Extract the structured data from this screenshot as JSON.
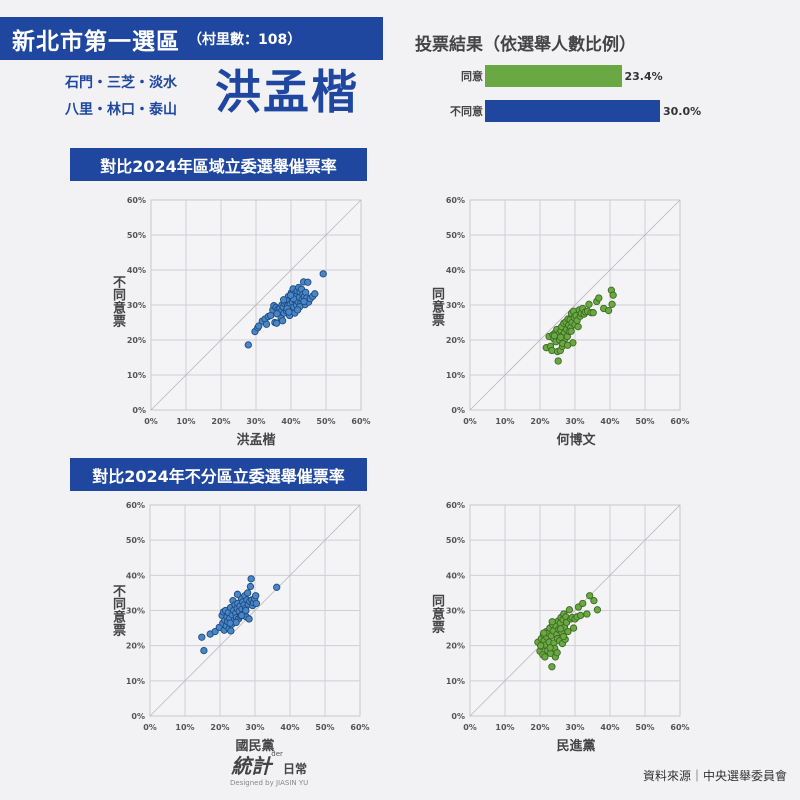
{
  "header": {
    "title": "新北市第一選區",
    "subtitle": "（村里數：108）",
    "areas_line1": "石門・三芝・淡水",
    "areas_line2": "八里・林口・泰山",
    "candidate": "洪孟楷"
  },
  "vote_result": {
    "title": "投票結果（依選舉人數比例）",
    "rows": [
      {
        "label": "同意",
        "value": 23.4,
        "display": "23.4%",
        "color": "#6aa843"
      },
      {
        "label": "不同意",
        "value": 30.0,
        "display": "30.0%",
        "color": "#1f47a0"
      }
    ]
  },
  "sections": [
    {
      "title": "對比2024年區域立委選舉催票率"
    },
    {
      "title": "對比2024年不分區立委選舉催票率"
    }
  ],
  "footer": {
    "logo_text": "統計",
    "logo_suffix": "日常",
    "logo_der": "der",
    "designer": "Designed by JIASIN YU",
    "source": "資料來源｜中央選舉委員會"
  },
  "colors": {
    "brand_blue": "#1f47a0",
    "agree_green": "#6aa843",
    "disagree_blue": "#4a86c5",
    "background": "#f2f1f4"
  },
  "chart_data": [
    {
      "type": "bar",
      "title": "投票結果（依選舉人數比例）",
      "categories": [
        "同意",
        "不同意"
      ],
      "values": [
        23.4,
        30.0
      ],
      "unit": "%"
    },
    {
      "type": "scatter",
      "title": "對比2024年區域立委選舉催票率",
      "xlabel": "洪孟楷",
      "ylabel": "不同意票",
      "xlim": [
        0,
        60
      ],
      "ylim": [
        0,
        60
      ],
      "ticks": [
        "0%",
        "10%",
        "20%",
        "30%",
        "40%",
        "50%",
        "60%"
      ],
      "grid": true,
      "diagonal": true,
      "color": "#4a86c5",
      "points": [
        [
          27.8,
          18.6
        ],
        [
          29.7,
          22.4
        ],
        [
          30.5,
          23.5
        ],
        [
          30.8,
          24
        ],
        [
          31.8,
          25.4
        ],
        [
          32.6,
          26
        ],
        [
          33,
          24.5
        ],
        [
          33.5,
          26.7
        ],
        [
          34.2,
          27
        ],
        [
          34.8,
          28.6
        ],
        [
          35.1,
          29.8
        ],
        [
          35.4,
          25
        ],
        [
          35.7,
          29.3
        ],
        [
          35.9,
          24.8
        ],
        [
          36.3,
          28.8
        ],
        [
          36.8,
          29
        ],
        [
          37,
          28
        ],
        [
          37.2,
          26.2
        ],
        [
          37.4,
          30
        ],
        [
          37.8,
          29.4
        ],
        [
          37.6,
          25.5
        ],
        [
          38,
          27.7
        ],
        [
          38.2,
          30.4
        ],
        [
          38.5,
          31
        ],
        [
          38.7,
          28.4
        ],
        [
          39,
          29.7
        ],
        [
          39.2,
          32.4
        ],
        [
          39.5,
          31.4
        ],
        [
          39.6,
          27
        ],
        [
          39.8,
          30.2
        ],
        [
          40,
          28.5
        ],
        [
          40.1,
          33.5
        ],
        [
          40.3,
          32
        ],
        [
          40.4,
          30.8
        ],
        [
          40.6,
          34.6
        ],
        [
          40.8,
          29.4
        ],
        [
          41,
          31.5
        ],
        [
          41.1,
          27.7
        ],
        [
          41.3,
          33.4
        ],
        [
          41.5,
          32.6
        ],
        [
          41.6,
          30
        ],
        [
          41.8,
          34
        ],
        [
          42,
          31
        ],
        [
          42.2,
          35
        ],
        [
          42.4,
          32.2
        ],
        [
          42.6,
          33.8
        ],
        [
          42.8,
          30.6
        ],
        [
          43,
          34.5
        ],
        [
          43.2,
          31.6
        ],
        [
          43.4,
          33
        ],
        [
          43.6,
          36.6
        ],
        [
          43.8,
          32.4
        ],
        [
          44,
          30.1
        ],
        [
          44.2,
          33.6
        ],
        [
          44.5,
          32
        ],
        [
          44.8,
          36.5
        ],
        [
          45,
          30.8
        ],
        [
          45.5,
          31.8
        ],
        [
          46.2,
          32.5
        ],
        [
          46.8,
          33.2
        ],
        [
          49.2,
          38.9
        ],
        [
          38.9,
          29
        ],
        [
          39.4,
          28
        ],
        [
          40.7,
          31.8
        ],
        [
          42.5,
          29.5
        ],
        [
          36,
          27.5
        ],
        [
          37.9,
          31.5
        ],
        [
          41.9,
          28.6
        ],
        [
          43.7,
          31
        ],
        [
          39.9,
          32.8
        ]
      ]
    },
    {
      "type": "scatter",
      "title": "對比2024年區域立委選舉催票率",
      "xlabel": "何博文",
      "ylabel": "同意票",
      "xlim": [
        0,
        60
      ],
      "ylim": [
        0,
        60
      ],
      "ticks": [
        "0%",
        "10%",
        "20%",
        "30%",
        "40%",
        "50%",
        "60%"
      ],
      "grid": true,
      "diagonal": true,
      "color": "#6aa843",
      "points": [
        [
          21.8,
          17.8
        ],
        [
          22.6,
          21
        ],
        [
          23,
          18.2
        ],
        [
          23.4,
          17
        ],
        [
          23.7,
          21.5
        ],
        [
          24,
          20.3
        ],
        [
          24.3,
          22
        ],
        [
          24.6,
          19.5
        ],
        [
          24.8,
          23
        ],
        [
          25,
          16.7
        ],
        [
          25.2,
          14
        ],
        [
          25.4,
          21.8
        ],
        [
          25.6,
          20
        ],
        [
          25.8,
          17
        ],
        [
          26,
          22.6
        ],
        [
          26.2,
          23.8
        ],
        [
          26.4,
          18.2
        ],
        [
          26.6,
          21.4
        ],
        [
          26.8,
          24.8
        ],
        [
          27,
          22
        ],
        [
          27.2,
          20.4
        ],
        [
          27.4,
          25.2
        ],
        [
          27.6,
          23
        ],
        [
          27.8,
          21
        ],
        [
          28,
          26
        ],
        [
          28.2,
          24.2
        ],
        [
          28.4,
          22.4
        ],
        [
          28.6,
          25.8
        ],
        [
          28.8,
          23.6
        ],
        [
          29,
          27.6
        ],
        [
          29.2,
          25
        ],
        [
          29.4,
          19.2
        ],
        [
          29.6,
          28.2
        ],
        [
          29.8,
          26.4
        ],
        [
          30,
          24.4
        ],
        [
          30.3,
          27
        ],
        [
          30.6,
          25.6
        ],
        [
          30.9,
          23.8
        ],
        [
          31.2,
          28.6
        ],
        [
          31.5,
          26.8
        ],
        [
          31.8,
          27.6
        ],
        [
          32.2,
          29
        ],
        [
          32.6,
          27.4
        ],
        [
          33,
          28
        ],
        [
          33.6,
          28.2
        ],
        [
          34,
          30.2
        ],
        [
          34.6,
          27.8
        ],
        [
          35.2,
          27.8
        ],
        [
          36.2,
          31
        ],
        [
          36.8,
          32
        ],
        [
          38.2,
          29
        ],
        [
          39.6,
          28.4
        ],
        [
          40.4,
          34.2
        ],
        [
          40.6,
          30.2
        ],
        [
          40.9,
          32.8
        ],
        [
          26.5,
          19
        ],
        [
          27.9,
          18.5
        ],
        [
          25.9,
          20.8
        ],
        [
          24.1,
          21.2
        ],
        [
          28.9,
          22.5
        ]
      ]
    },
    {
      "type": "scatter",
      "title": "對比2024年不分區立委選舉催票率",
      "xlabel": "國民黨",
      "ylabel": "不同意票",
      "xlim": [
        0,
        60
      ],
      "ylim": [
        0,
        60
      ],
      "ticks": [
        "0%",
        "10%",
        "20%",
        "30%",
        "40%",
        "50%",
        "60%"
      ],
      "grid": true,
      "diagonal": true,
      "color": "#4a86c5",
      "points": [
        [
          14.8,
          22.4
        ],
        [
          15.4,
          18.6
        ],
        [
          17.2,
          23.3
        ],
        [
          18.6,
          24
        ],
        [
          19.8,
          25.2
        ],
        [
          20.6,
          28.6
        ],
        [
          20.8,
          26.4
        ],
        [
          21,
          29.6
        ],
        [
          21.2,
          24.4
        ],
        [
          21.4,
          27.2
        ],
        [
          21.6,
          30
        ],
        [
          21.8,
          25.6
        ],
        [
          22,
          28.2
        ],
        [
          22.2,
          26.8
        ],
        [
          22.4,
          29.4
        ],
        [
          22.6,
          24.8
        ],
        [
          22.8,
          27.8
        ],
        [
          23,
          30.8
        ],
        [
          23.1,
          24.2
        ],
        [
          23.3,
          26
        ],
        [
          23.5,
          28.8
        ],
        [
          23.7,
          32.8
        ],
        [
          23.9,
          30
        ],
        [
          24.1,
          27.2
        ],
        [
          24.3,
          31.6
        ],
        [
          24.5,
          29.2
        ],
        [
          24.7,
          28
        ],
        [
          24.9,
          30.6
        ],
        [
          25.1,
          32
        ],
        [
          25.3,
          27.6
        ],
        [
          25.5,
          29.8
        ],
        [
          25.7,
          31.2
        ],
        [
          25.9,
          28.4
        ],
        [
          26.1,
          33.4
        ],
        [
          26.3,
          30.4
        ],
        [
          26.5,
          32.4
        ],
        [
          26.7,
          29
        ],
        [
          26.9,
          31.6
        ],
        [
          27.1,
          34.2
        ],
        [
          27.3,
          30.6
        ],
        [
          27.5,
          28.2
        ],
        [
          27.7,
          33
        ],
        [
          27.9,
          35
        ],
        [
          28.1,
          31.8
        ],
        [
          28.3,
          27.6
        ],
        [
          28.5,
          32.6
        ],
        [
          28.7,
          36.8
        ],
        [
          28.9,
          39
        ],
        [
          29.1,
          33
        ],
        [
          29.3,
          31.4
        ],
        [
          29.6,
          32.2
        ],
        [
          29.9,
          33.4
        ],
        [
          30.2,
          34.2
        ],
        [
          30.4,
          32
        ],
        [
          36.2,
          36.6
        ],
        [
          24.6,
          26.6
        ],
        [
          22.9,
          26.4
        ],
        [
          26.2,
          28.6
        ],
        [
          27.4,
          30
        ],
        [
          25,
          34.6
        ]
      ]
    },
    {
      "type": "scatter",
      "title": "對比2024年不分區立委選舉催票率",
      "xlabel": "民進黨",
      "ylabel": "同意票",
      "xlim": [
        0,
        60
      ],
      "ylim": [
        0,
        60
      ],
      "ticks": [
        "0%",
        "10%",
        "20%",
        "30%",
        "40%",
        "50%",
        "60%"
      ],
      "grid": true,
      "diagonal": true,
      "color": "#6aa843",
      "points": [
        [
          19.4,
          21
        ],
        [
          20,
          18.4
        ],
        [
          20.4,
          22
        ],
        [
          20.6,
          19.8
        ],
        [
          20.8,
          17.4
        ],
        [
          21,
          23.2
        ],
        [
          21.2,
          21.4
        ],
        [
          21.4,
          16.8
        ],
        [
          21.6,
          20.2
        ],
        [
          21.8,
          24
        ],
        [
          22,
          22.4
        ],
        [
          22.2,
          18.6
        ],
        [
          22.4,
          23.6
        ],
        [
          22.6,
          21
        ],
        [
          22.8,
          25
        ],
        [
          23,
          17.8
        ],
        [
          23.2,
          22.8
        ],
        [
          23.4,
          14
        ],
        [
          23.6,
          26
        ],
        [
          23.8,
          24.2
        ],
        [
          24,
          20.8
        ],
        [
          24.2,
          19.2
        ],
        [
          24.4,
          16.8
        ],
        [
          24.6,
          25.6
        ],
        [
          24.8,
          23.2
        ],
        [
          25,
          22
        ],
        [
          25.2,
          27
        ],
        [
          25.4,
          24.6
        ],
        [
          25.6,
          21.4
        ],
        [
          25.8,
          26.4
        ],
        [
          26,
          28
        ],
        [
          26.2,
          23.8
        ],
        [
          26.4,
          20.6
        ],
        [
          26.6,
          27.4
        ],
        [
          26.8,
          29
        ],
        [
          27,
          25.2
        ],
        [
          27.2,
          21.8
        ],
        [
          27.4,
          28.2
        ],
        [
          27.6,
          26.6
        ],
        [
          28,
          24
        ],
        [
          28.4,
          30.2
        ],
        [
          28.8,
          27.6
        ],
        [
          29.2,
          28
        ],
        [
          29.6,
          25
        ],
        [
          30,
          27.6
        ],
        [
          30.6,
          28.2
        ],
        [
          31,
          31
        ],
        [
          31.6,
          28.6
        ],
        [
          32.2,
          32
        ],
        [
          33.4,
          29
        ],
        [
          34.2,
          34.2
        ],
        [
          35.4,
          32.8
        ],
        [
          36.4,
          30.2
        ],
        [
          22.9,
          19.4
        ],
        [
          24.9,
          18
        ],
        [
          26.7,
          22.6
        ],
        [
          21.1,
          23.6
        ],
        [
          20.2,
          20
        ],
        [
          25.9,
          24.8
        ],
        [
          23.5,
          26.8
        ]
      ]
    }
  ]
}
